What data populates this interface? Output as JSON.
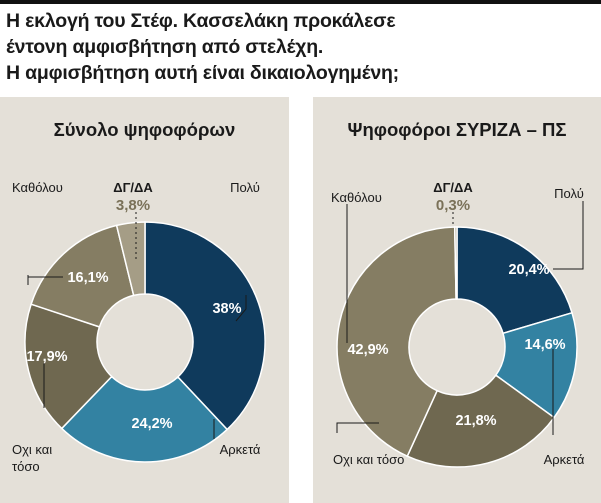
{
  "headline": {
    "line1": "Η εκλογή του Στέφ. Κασσελάκη προκάλεσε",
    "line2": "έντονη αμφισβήτηση από στελέχη.",
    "line3": "Η αμφισβήτηση αυτή είναι δικαιολογημένη;"
  },
  "colors": {
    "poly": "#0f3a5c",
    "arketa": "#3382a2",
    "oxi": "#6f6850",
    "katholou": "#857d63",
    "dg": "#a59d86",
    "panel": "#e4e0d8"
  },
  "chart_data": [
    {
      "type": "pie",
      "title": "Σύνολο ψηφοφόρων",
      "slices": [
        {
          "label": "Πολύ",
          "value": 38,
          "display": "38%"
        },
        {
          "label": "Αρκετά",
          "value": 24.2,
          "display": "24,2%"
        },
        {
          "label": "Οχι και τόσο",
          "value": 17.9,
          "display": "17,9%"
        },
        {
          "label": "Καθόλου",
          "value": 16.1,
          "display": "16,1%"
        },
        {
          "label": "ΔΓ/ΔΑ",
          "value": 3.8,
          "display": "3,8%"
        }
      ]
    },
    {
      "type": "pie",
      "title": "Ψηφοφόροι ΣΥΡΙΖΑ – ΠΣ",
      "slices": [
        {
          "label": "Πολύ",
          "value": 20.4,
          "display": "20,4%"
        },
        {
          "label": "Αρκετά",
          "value": 14.6,
          "display": "14,6%"
        },
        {
          "label": "Οχι και τόσο",
          "value": 21.8,
          "display": "21,8%"
        },
        {
          "label": "Καθόλου",
          "value": 42.9,
          "display": "42,9%"
        },
        {
          "label": "ΔΓ/ΔΑ",
          "value": 0.3,
          "display": "0,3%"
        }
      ]
    }
  ]
}
